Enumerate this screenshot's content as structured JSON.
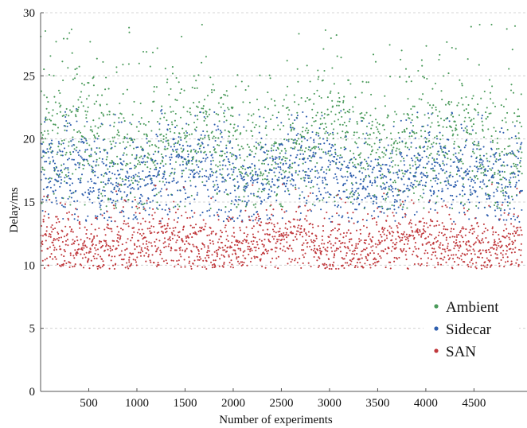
{
  "chart_data": {
    "type": "scatter",
    "xlabel": "Number of experiments",
    "ylabel": "Delay/ms",
    "xlim": [
      0,
      5000
    ],
    "ylim": [
      0,
      30
    ],
    "x_ticks": [
      500,
      1000,
      1500,
      2000,
      2500,
      3000,
      3500,
      4000,
      4500
    ],
    "x_tick_labels": [
      "500",
      "1000",
      "1500",
      "2000",
      "2500",
      "3000",
      "3500",
      "4000",
      "4500"
    ],
    "y_ticks": [
      0,
      5,
      10,
      15,
      20,
      25,
      30
    ],
    "y_tick_labels": [
      "0",
      "5",
      "10",
      "15",
      "20",
      "25",
      "30"
    ],
    "grid": "horizontal dashed",
    "legend_position": "lower-right",
    "series": [
      {
        "name": "Ambient",
        "color": "#4a9a5a",
        "n_points": 5000,
        "y_typical_min": 15,
        "y_typical_max": 25,
        "y_center": 19.5,
        "y_max": 29.2
      },
      {
        "name": "Sidecar",
        "color": "#2f5fae",
        "n_points": 5000,
        "y_typical_min": 14,
        "y_typical_max": 21,
        "y_center": 17.0,
        "y_max": 22.5
      },
      {
        "name": "SAN",
        "color": "#c0383c",
        "n_points": 5000,
        "y_typical_min": 10.3,
        "y_typical_max": 15,
        "y_center": 11.6,
        "y_max": 16.5
      }
    ]
  }
}
